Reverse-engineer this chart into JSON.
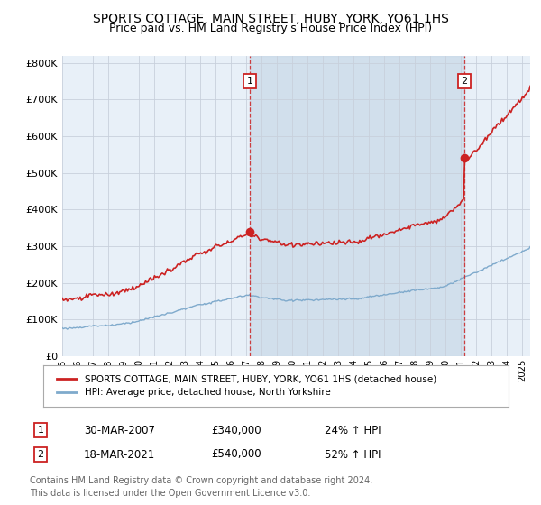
{
  "title": "SPORTS COTTAGE, MAIN STREET, HUBY, YORK, YO61 1HS",
  "subtitle": "Price paid vs. HM Land Registry's House Price Index (HPI)",
  "title_fontsize": 10,
  "subtitle_fontsize": 9,
  "ylabel_ticks": [
    "£0",
    "£100K",
    "£200K",
    "£300K",
    "£400K",
    "£500K",
    "£600K",
    "£700K",
    "£800K"
  ],
  "ytick_values": [
    0,
    100000,
    200000,
    300000,
    400000,
    500000,
    600000,
    700000,
    800000
  ],
  "ylim": [
    0,
    820000
  ],
  "xlim_start": 1995.0,
  "xlim_end": 2025.5,
  "hpi_color": "#7faacc",
  "price_color": "#cc2222",
  "plot_bg_color": "#e8f0f8",
  "shade_color": "#c8d8e8",
  "marker1_x": 2007.23,
  "marker1_y": 340000,
  "marker2_x": 2021.21,
  "marker2_y": 540000,
  "annotation1_label": "1",
  "annotation2_label": "2",
  "legend_line1": "SPORTS COTTAGE, MAIN STREET, HUBY, YORK, YO61 1HS (detached house)",
  "legend_line2": "HPI: Average price, detached house, North Yorkshire",
  "table_row1": [
    "1",
    "30-MAR-2007",
    "£340,000",
    "24% ↑ HPI"
  ],
  "table_row2": [
    "2",
    "18-MAR-2021",
    "£540,000",
    "52% ↑ HPI"
  ],
  "footer_text": "Contains HM Land Registry data © Crown copyright and database right 2024.\nThis data is licensed under the Open Government Licence v3.0.",
  "background_color": "#ffffff",
  "grid_color": "#c8d0dc"
}
